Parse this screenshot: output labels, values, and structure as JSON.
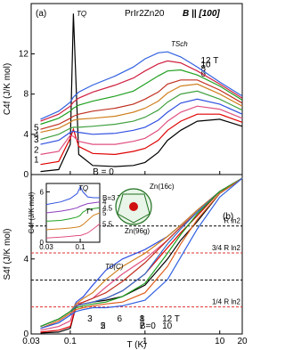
{
  "chart_data": [
    {
      "type": "line",
      "log_x": true,
      "panel_label": "(a)",
      "title": "PrIr2Zn20",
      "subtitle": "B || [100]",
      "y_label": "C4f (J/K mol)",
      "annotations": [
        "TQ",
        "TSch"
      ],
      "xlim": [
        0.03,
        20
      ],
      "ylim": [
        0,
        17
      ],
      "yticks": [
        0,
        4,
        8,
        12
      ],
      "x": [
        0.04,
        0.07,
        0.1,
        0.11,
        0.13,
        0.2,
        0.4,
        0.7,
        1,
        1.5,
        2,
        3,
        5,
        10,
        20
      ],
      "series": [
        {
          "name": "B = 0",
          "color": "#000000",
          "values": [
            0.3,
            0.5,
            3,
            16,
            2,
            0.9,
            0.8,
            0.9,
            1.2,
            2.2,
            3.4,
            4.4,
            5.3,
            5.5,
            4.8
          ]
        },
        {
          "name": "1",
          "color": "#e00000",
          "values": [
            1.0,
            1.3,
            3.6,
            4.5,
            2.8,
            2.1,
            2.0,
            2.3,
            2.6,
            3.4,
            4.4,
            5.3,
            6.0,
            6.0,
            5.2
          ]
        },
        {
          "name": "2",
          "color": "#e05080",
          "values": [
            2.0,
            2.3,
            3.9,
            3.8,
            3.3,
            3.0,
            3.0,
            3.3,
            3.6,
            4.4,
            5.3,
            6.2,
            6.8,
            6.5,
            5.6
          ]
        },
        {
          "name": "3",
          "color": "#3050e0",
          "values": [
            3.0,
            3.4,
            4.2,
            4.3,
            4.2,
            4.0,
            4.1,
            4.4,
            4.7,
            5.4,
            6.2,
            7.1,
            7.5,
            7.0,
            6.0
          ]
        },
        {
          "name": "4",
          "color": "#40a040",
          "values": [
            3.5,
            4.0,
            4.6,
            4.7,
            4.7,
            4.8,
            5.0,
            5.3,
            5.7,
            6.4,
            7.2,
            8.0,
            8.3,
            7.5,
            6.4
          ]
        },
        {
          "name": "5",
          "color": "#d08020",
          "values": [
            4.2,
            4.6,
            5.2,
            5.4,
            5.5,
            5.6,
            5.8,
            6.2,
            6.6,
            7.3,
            8.1,
            8.8,
            9.0,
            8.0,
            6.8
          ]
        },
        {
          "name": "6",
          "color": "#c03020",
          "values": [
            4.5,
            5.0,
            5.6,
            5.8,
            6.0,
            6.3,
            6.6,
            7.0,
            7.5,
            8.2,
            9.0,
            9.4,
            9.4,
            8.4,
            7.1
          ]
        },
        {
          "name": "8",
          "color": "#20a020",
          "values": [
            5.0,
            5.6,
            6.3,
            6.6,
            6.9,
            7.3,
            7.8,
            8.3,
            9.0,
            9.8,
            10.3,
            10.4,
            9.9,
            8.8,
            7.4
          ]
        },
        {
          "name": "10",
          "color": "#d02040",
          "values": [
            5.3,
            6.0,
            6.8,
            7.2,
            7.6,
            8.2,
            8.9,
            9.6,
            10.3,
            11.0,
            11.3,
            11.1,
            10.3,
            9.0,
            7.6
          ]
        },
        {
          "name": "12 T",
          "color": "#3060e0",
          "values": [
            5.5,
            6.3,
            7.2,
            7.7,
            8.2,
            8.9,
            9.8,
            10.7,
            11.5,
            12.1,
            12.2,
            11.7,
            10.7,
            9.2,
            7.8
          ]
        }
      ]
    },
    {
      "type": "line",
      "log_x": true,
      "panel_label": "(b)",
      "y_label": "S4f (J/K mol)",
      "x_label": "T (K)",
      "annotations": [
        "T0(C)"
      ],
      "xlim": [
        0.03,
        20
      ],
      "xticks": [
        0.03,
        0.1,
        1,
        10,
        20
      ],
      "ylim": [
        0,
        8.5
      ],
      "yticks": [
        0,
        4
      ],
      "ref_lines": [
        {
          "value": 5.76,
          "label": "R ln2",
          "color": "#000000"
        },
        {
          "value": 4.32,
          "label": "3/4 R ln2",
          "color": "#e03030"
        },
        {
          "value": 2.88,
          "color": "#000000"
        },
        {
          "value": 1.44,
          "label": "1/4 R ln2",
          "color": "#e03030"
        }
      ],
      "x": [
        0.04,
        0.07,
        0.1,
        0.12,
        0.15,
        0.2,
        0.3,
        0.5,
        1,
        2,
        3,
        5,
        10,
        20
      ],
      "series": [
        {
          "name": "B=0",
          "color": "#000000",
          "values": [
            0.05,
            0.1,
            0.3,
            1.5,
            1.6,
            1.7,
            1.8,
            2.0,
            2.6,
            4.0,
            5.0,
            6.0,
            7.5,
            8.3
          ]
        },
        {
          "name": "1",
          "color": "#e00000",
          "values": [
            0.1,
            0.2,
            0.4,
            1.5,
            1.6,
            1.7,
            1.9,
            2.3,
            3.2,
            4.6,
            5.4,
            6.3,
            7.6,
            8.3
          ]
        },
        {
          "name": "2",
          "color": "#e05080",
          "values": [
            0.2,
            0.4,
            0.7,
            1.6,
            1.7,
            1.9,
            2.5,
            3.2,
            4.0,
            5.0,
            5.7,
            6.5,
            7.6,
            8.3
          ]
        },
        {
          "name": "3",
          "color": "#3050e0",
          "values": [
            0.3,
            0.6,
            1.0,
            1.7,
            2.0,
            2.6,
            3.4,
            4.0,
            4.5,
            5.2,
            5.8,
            6.6,
            7.6,
            8.3
          ]
        },
        {
          "name": "5",
          "color": "#d08020",
          "values": [
            0.4,
            0.8,
            1.2,
            1.6,
            1.9,
            2.2,
            2.9,
            3.6,
            4.3,
            5.2,
            5.8,
            6.6,
            7.6,
            8.3
          ]
        },
        {
          "name": "6",
          "color": "#c03020",
          "values": [
            0.4,
            0.8,
            1.2,
            1.5,
            1.7,
            1.9,
            2.2,
            2.8,
            3.8,
            5.0,
            5.7,
            6.5,
            7.6,
            8.3
          ]
        },
        {
          "name": "7",
          "color": "#3070d0",
          "values": [
            0.4,
            0.8,
            1.2,
            1.5,
            1.6,
            1.7,
            1.9,
            2.3,
            3.2,
            4.8,
            5.6,
            6.5,
            7.6,
            8.3
          ]
        },
        {
          "name": "8",
          "color": "#20a020",
          "values": [
            0.4,
            0.8,
            1.2,
            1.4,
            1.5,
            1.6,
            1.7,
            2.0,
            2.7,
            4.3,
            5.3,
            6.4,
            7.6,
            8.3
          ]
        },
        {
          "name": "10",
          "color": "#e06020",
          "values": [
            0.3,
            0.7,
            1.1,
            1.3,
            1.4,
            1.5,
            1.6,
            1.7,
            2.2,
            3.6,
            4.8,
            6.1,
            7.5,
            8.3
          ]
        },
        {
          "name": "12 T",
          "color": "#3060e0",
          "values": [
            0.3,
            0.6,
            1.0,
            1.2,
            1.3,
            1.4,
            1.4,
            1.5,
            1.8,
            2.9,
            4.1,
            5.6,
            7.3,
            8.3
          ]
        }
      ]
    },
    {
      "type": "line",
      "log_x": true,
      "y_label": "C4f (J/K mol)",
      "annotations": [
        "TQ",
        "T*"
      ],
      "xlim": [
        0.03,
        0.2
      ],
      "xticks": [
        0.03,
        0.1
      ],
      "ylim": [
        0,
        7
      ],
      "yticks": [
        0,
        6
      ],
      "x": [
        0.03,
        0.05,
        0.07,
        0.09,
        0.1,
        0.11,
        0.13,
        0.16,
        0.2
      ],
      "series": [
        {
          "name": "B=3 T",
          "color": "#3050e0",
          "values": [
            4.5,
            4.8,
            5.2,
            5.8,
            6.6,
            6.0,
            5.4,
            5.3,
            5.3
          ]
        },
        {
          "name": "4",
          "color": "#9040c0",
          "values": [
            3.5,
            3.7,
            3.9,
            4.1,
            4.3,
            4.4,
            4.6,
            4.7,
            4.8
          ]
        },
        {
          "name": "4.5",
          "color": "#20a020",
          "values": [
            2.5,
            2.6,
            2.8,
            3.0,
            3.2,
            3.6,
            3.9,
            4.0,
            4.1
          ]
        },
        {
          "name": "5",
          "color": "#d08020",
          "values": [
            1.5,
            1.6,
            1.7,
            1.8,
            1.9,
            2.1,
            2.6,
            3.2,
            3.5
          ]
        },
        {
          "name": "5.5",
          "color": "#e05080",
          "values": [
            0.5,
            0.6,
            0.7,
            0.8,
            0.8,
            0.9,
            1.1,
            1.6,
            2.2
          ]
        }
      ]
    }
  ],
  "structure": {
    "labels": [
      "Zn(16c)",
      "Zn(96g)"
    ]
  }
}
